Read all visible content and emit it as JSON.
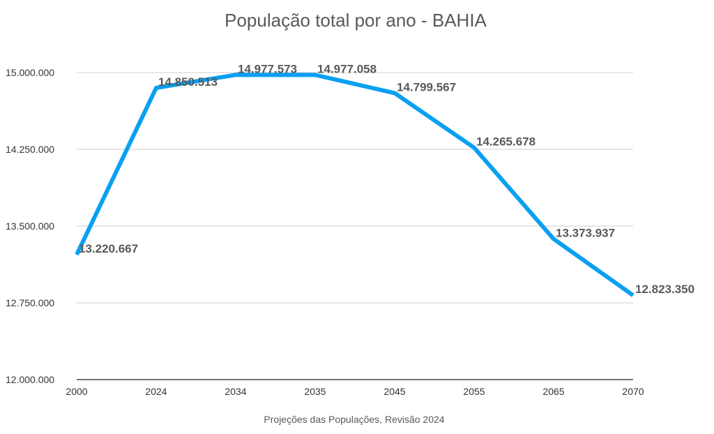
{
  "chart_data": {
    "type": "line",
    "title": "População total por ano - BAHIA",
    "xlabel": "Projeções das Populações, Revisão 2024",
    "ylabel": "",
    "categories": [
      "2000",
      "2024",
      "2034",
      "2035",
      "2045",
      "2055",
      "2065",
      "2070"
    ],
    "series": [
      {
        "values": [
          13220667,
          14850513,
          14977573,
          14977058,
          14799567,
          14265678,
          13373937,
          12823350
        ],
        "labels": [
          "13.220.667",
          "14.850.513",
          "14.977.573",
          "14.977.058",
          "14.799.567",
          "14.265.678",
          "13.373.937",
          "12.823.350"
        ],
        "color": "#0aa0f2"
      }
    ],
    "ylim": [
      12000000,
      15000000
    ],
    "yticks": [
      12000000,
      12750000,
      13500000,
      14250000,
      15000000
    ],
    "ytick_labels": [
      "12.000.000",
      "12.750.000",
      "13.500.000",
      "14.250.000",
      "15.000.000"
    ],
    "grid": true,
    "legend": "none"
  }
}
